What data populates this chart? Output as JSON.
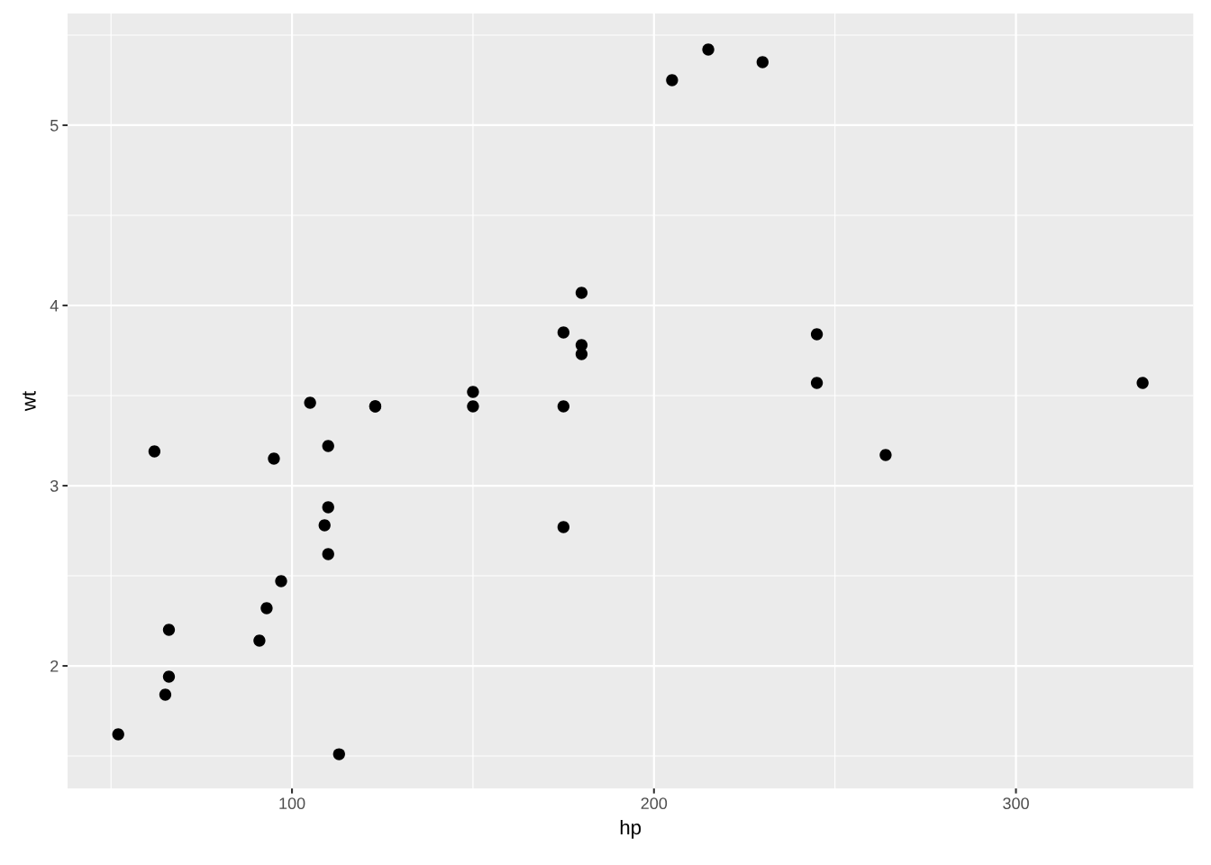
{
  "chart_data": {
    "type": "scatter",
    "xlabel": "hp",
    "ylabel": "wt",
    "x": [
      110,
      110,
      93,
      110,
      175,
      105,
      245,
      62,
      95,
      123,
      123,
      180,
      180,
      180,
      205,
      215,
      230,
      66,
      52,
      65,
      97,
      150,
      150,
      245,
      175,
      66,
      91,
      113,
      264,
      175,
      335,
      109
    ],
    "series": [
      {
        "color": "#000000",
        "values": [
          2.62,
          2.88,
          2.32,
          3.22,
          3.44,
          3.46,
          3.57,
          3.19,
          3.15,
          3.44,
          3.44,
          4.07,
          3.73,
          3.78,
          5.25,
          5.42,
          5.35,
          2.2,
          1.62,
          1.84,
          2.47,
          3.52,
          3.44,
          3.84,
          3.85,
          1.94,
          2.14,
          1.51,
          3.17,
          2.77,
          3.57,
          2.78
        ]
      }
    ],
    "xlim": [
      38,
      349
    ],
    "ylim": [
      1.32,
      5.62
    ],
    "xticks": [
      100,
      200,
      300
    ],
    "yticks": [
      2,
      3,
      4,
      5
    ],
    "grid": true,
    "marker": "circle"
  }
}
